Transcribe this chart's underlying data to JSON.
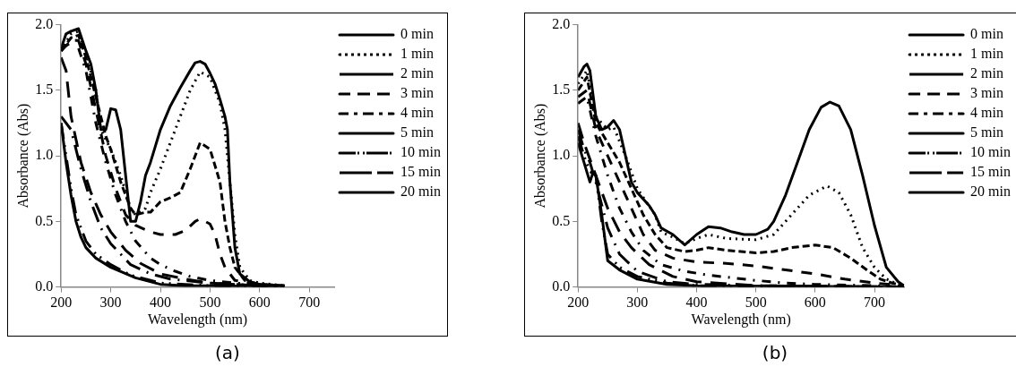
{
  "chart_data": [
    {
      "type": "line",
      "xlabel": "Wavelength (nm)",
      "ylabel": "Absorbance (Abs)",
      "annotations": [
        "(a)"
      ],
      "xlim": [
        200,
        750
      ],
      "xticks": [
        200,
        300,
        400,
        500,
        600,
        700
      ],
      "ylim": [
        0,
        2.0
      ],
      "yticks": [
        {
          "value": 0,
          "label": "0.0"
        },
        {
          "value": 0.5,
          "label": "0.5"
        },
        {
          "value": 1,
          "label": "1.0"
        },
        {
          "value": 1.5,
          "label": "1.5"
        },
        {
          "value": 2,
          "label": "2.0"
        }
      ],
      "grid": false,
      "legend": "top right",
      "marker": "none",
      "series": [
        {
          "name": "0 min",
          "color": "#000000",
          "line_style": "solid",
          "x": [
            200,
            210,
            220,
            235,
            250,
            260,
            270,
            280,
            290,
            300,
            310,
            320,
            330,
            340,
            350,
            360,
            370,
            380,
            400,
            420,
            440,
            460,
            470,
            480,
            490,
            500,
            510,
            520,
            530,
            535,
            540,
            550,
            560,
            580,
            600,
            650
          ],
          "values": [
            1.82,
            1.93,
            1.95,
            1.97,
            1.8,
            1.7,
            1.5,
            1.2,
            1.2,
            1.36,
            1.35,
            1.2,
            0.85,
            0.5,
            0.5,
            0.65,
            0.85,
            0.95,
            1.2,
            1.38,
            1.52,
            1.65,
            1.71,
            1.72,
            1.7,
            1.63,
            1.55,
            1.43,
            1.3,
            1.2,
            0.8,
            0.3,
            0.1,
            0.04,
            0.02,
            0.01
          ]
        },
        {
          "name": "1 min",
          "color": "#000000",
          "line_style": "dotted",
          "x": [
            200,
            220,
            235,
            250,
            270,
            280,
            300,
            320,
            340,
            350,
            370,
            380,
            400,
            420,
            440,
            460,
            480,
            500,
            520,
            530,
            540,
            550,
            560,
            580,
            600,
            650
          ],
          "values": [
            1.8,
            1.93,
            1.95,
            1.78,
            1.5,
            1.2,
            1.05,
            0.85,
            0.6,
            0.55,
            0.6,
            0.72,
            0.9,
            1.1,
            1.3,
            1.5,
            1.64,
            1.6,
            1.4,
            1.2,
            0.8,
            0.4,
            0.15,
            0.05,
            0.03,
            0.01
          ]
        },
        {
          "name": "2 min",
          "color": "#000000",
          "line_style": "dashed",
          "x": [
            200,
            220,
            235,
            250,
            270,
            290,
            300,
            320,
            340,
            350,
            370,
            380,
            400,
            420,
            440,
            460,
            480,
            500,
            520,
            530,
            540,
            550,
            570,
            600,
            650
          ],
          "values": [
            1.8,
            1.9,
            1.92,
            1.75,
            1.45,
            1.15,
            1.05,
            0.8,
            0.6,
            0.55,
            0.57,
            0.57,
            0.65,
            0.68,
            0.72,
            0.9,
            1.1,
            1.05,
            0.8,
            0.5,
            0.3,
            0.15,
            0.05,
            0.02,
            0.01
          ]
        },
        {
          "name": "3 min",
          "color": "#000000",
          "line_style": "longdash",
          "x": [
            200,
            220,
            235,
            250,
            270,
            290,
            310,
            330,
            350,
            380,
            400,
            430,
            450,
            470,
            480,
            500,
            510,
            520,
            530,
            550,
            600,
            650
          ],
          "values": [
            1.8,
            1.88,
            1.88,
            1.7,
            1.35,
            1.0,
            0.75,
            0.55,
            0.47,
            0.42,
            0.4,
            0.4,
            0.43,
            0.5,
            0.52,
            0.48,
            0.4,
            0.25,
            0.15,
            0.05,
            0.02,
            0.01
          ]
        },
        {
          "name": "4 min",
          "color": "#000000",
          "line_style": "dashdot",
          "x": [
            200,
            230,
            250,
            270,
            290,
            310,
            330,
            350,
            380,
            400,
            430,
            460,
            500,
            550,
            600,
            650
          ],
          "values": [
            1.82,
            1.88,
            1.65,
            1.25,
            0.95,
            0.7,
            0.5,
            0.35,
            0.22,
            0.17,
            0.12,
            0.08,
            0.05,
            0.03,
            0.02,
            0.01
          ]
        },
        {
          "name": "5 min",
          "color": "#000000",
          "line_style": "xlongdash",
          "x": [
            200,
            210,
            220,
            240,
            260,
            280,
            300,
            330,
            360,
            400,
            450,
            500,
            600,
            650
          ],
          "values": [
            1.75,
            1.65,
            1.3,
            0.95,
            0.72,
            0.55,
            0.42,
            0.28,
            0.18,
            0.1,
            0.06,
            0.03,
            0.01,
            0.01
          ]
        },
        {
          "name": "10 min",
          "color": "#000000",
          "line_style": "longdashdot",
          "x": [
            200,
            220,
            240,
            260,
            280,
            300,
            340,
            380,
            420,
            500,
            600,
            650
          ],
          "values": [
            1.3,
            1.2,
            0.9,
            0.65,
            0.45,
            0.33,
            0.17,
            0.1,
            0.06,
            0.03,
            0.01,
            0.01
          ]
        },
        {
          "name": "15 min",
          "color": "#000000",
          "line_style": "longdashdotdot",
          "x": [
            200,
            210,
            220,
            230,
            250,
            270,
            300,
            340,
            400,
            500,
            650
          ],
          "values": [
            1.25,
            1.0,
            0.75,
            0.55,
            0.35,
            0.25,
            0.17,
            0.09,
            0.03,
            0.01,
            0
          ]
        },
        {
          "name": "20 min",
          "color": "#000000",
          "line_style": "solid",
          "x": [
            200,
            210,
            220,
            230,
            240,
            250,
            270,
            300,
            350,
            400,
            450,
            500,
            650
          ],
          "values": [
            1.25,
            0.95,
            0.7,
            0.5,
            0.38,
            0.3,
            0.22,
            0.15,
            0.07,
            0.02,
            0.01,
            0.01,
            0
          ]
        }
      ]
    },
    {
      "type": "line",
      "xlabel": "Wavelength (nm)",
      "ylabel": "Absorbance (Abs)",
      "annotations": [
        "(b)"
      ],
      "xlim": [
        200,
        750
      ],
      "xticks": [
        200,
        300,
        400,
        500,
        600,
        700
      ],
      "ylim": [
        0,
        2.0
      ],
      "yticks": [
        {
          "value": 0,
          "label": "0.0"
        },
        {
          "value": 0.5,
          "label": "0.5"
        },
        {
          "value": 1,
          "label": "1.0"
        },
        {
          "value": 1.5,
          "label": "1.5"
        },
        {
          "value": 2,
          "label": "2.0"
        }
      ],
      "grid": false,
      "legend": "top right",
      "marker": "none",
      "series": [
        {
          "name": "0 min",
          "color": "#000000",
          "line_style": "solid",
          "x": [
            200,
            210,
            215,
            220,
            230,
            240,
            250,
            260,
            270,
            280,
            290,
            300,
            320,
            330,
            340,
            360,
            380,
            400,
            420,
            440,
            460,
            480,
            500,
            520,
            530,
            550,
            570,
            590,
            610,
            625,
            640,
            660,
            680,
            700,
            720,
            740,
            750
          ],
          "values": [
            1.6,
            1.68,
            1.7,
            1.65,
            1.3,
            1.2,
            1.22,
            1.27,
            1.2,
            1.0,
            0.8,
            0.72,
            0.62,
            0.55,
            0.45,
            0.4,
            0.32,
            0.4,
            0.46,
            0.45,
            0.42,
            0.4,
            0.4,
            0.44,
            0.5,
            0.7,
            0.95,
            1.2,
            1.37,
            1.41,
            1.38,
            1.2,
            0.85,
            0.47,
            0.15,
            0.04,
            0.01
          ]
        },
        {
          "name": "1 min",
          "color": "#000000",
          "line_style": "dotted",
          "x": [
            200,
            215,
            230,
            250,
            260,
            280,
            300,
            330,
            340,
            360,
            380,
            400,
            420,
            450,
            500,
            530,
            560,
            590,
            620,
            640,
            660,
            680,
            700,
            720,
            740,
            750
          ],
          "values": [
            1.55,
            1.65,
            1.3,
            1.2,
            1.22,
            1.0,
            0.75,
            0.55,
            0.42,
            0.38,
            0.33,
            0.37,
            0.4,
            0.37,
            0.36,
            0.4,
            0.55,
            0.7,
            0.77,
            0.72,
            0.55,
            0.3,
            0.15,
            0.06,
            0.02,
            0.01
          ]
        },
        {
          "name": "2 min",
          "color": "#000000",
          "line_style": "dashed",
          "x": [
            200,
            215,
            230,
            250,
            270,
            290,
            310,
            330,
            350,
            380,
            400,
            420,
            450,
            500,
            530,
            560,
            600,
            630,
            660,
            690,
            710,
            730,
            750
          ],
          "values": [
            1.5,
            1.6,
            1.25,
            1.1,
            0.95,
            0.75,
            0.55,
            0.4,
            0.3,
            0.27,
            0.28,
            0.3,
            0.28,
            0.26,
            0.27,
            0.3,
            0.32,
            0.3,
            0.22,
            0.12,
            0.06,
            0.03,
            0.01
          ]
        },
        {
          "name": "3 min",
          "color": "#000000",
          "line_style": "longdash",
          "x": [
            200,
            215,
            230,
            250,
            270,
            290,
            310,
            330,
            360,
            400,
            450,
            500,
            550,
            600,
            650,
            700,
            750
          ],
          "values": [
            1.45,
            1.5,
            1.2,
            1.0,
            0.8,
            0.6,
            0.4,
            0.28,
            0.22,
            0.19,
            0.18,
            0.16,
            0.13,
            0.1,
            0.06,
            0.03,
            0.01
          ]
        },
        {
          "name": "4 min",
          "color": "#000000",
          "line_style": "dashdot",
          "x": [
            200,
            215,
            230,
            250,
            270,
            290,
            310,
            340,
            380,
            420,
            460,
            500,
            550,
            600,
            700,
            750
          ],
          "values": [
            1.4,
            1.45,
            1.15,
            0.85,
            0.6,
            0.42,
            0.28,
            0.17,
            0.12,
            0.09,
            0.07,
            0.05,
            0.03,
            0.02,
            0.01,
            0
          ]
        },
        {
          "name": "5 min",
          "color": "#000000",
          "line_style": "xlongdash",
          "x": [
            200,
            210,
            230,
            250,
            270,
            290,
            320,
            360,
            400,
            500,
            750
          ],
          "values": [
            1.25,
            1.1,
            0.85,
            0.6,
            0.42,
            0.3,
            0.17,
            0.08,
            0.04,
            0.01,
            0
          ]
        },
        {
          "name": "10 min",
          "color": "#000000",
          "line_style": "longdashdot",
          "x": [
            200,
            210,
            220,
            230,
            250,
            270,
            300,
            350,
            400,
            500,
            750
          ],
          "values": [
            1.2,
            1.05,
            0.95,
            0.8,
            0.45,
            0.25,
            0.12,
            0.04,
            0.02,
            0.01,
            0
          ]
        },
        {
          "name": "15 min",
          "color": "#000000",
          "line_style": "longdashdotdot",
          "x": [
            200,
            210,
            220,
            230,
            240,
            250,
            270,
            300,
            350,
            400,
            750
          ],
          "values": [
            1.15,
            1.0,
            0.88,
            0.85,
            0.5,
            0.25,
            0.15,
            0.08,
            0.03,
            0.01,
            0
          ]
        },
        {
          "name": "20 min",
          "color": "#000000",
          "line_style": "solid",
          "x": [
            200,
            210,
            220,
            225,
            230,
            240,
            250,
            270,
            300,
            350,
            400,
            750
          ],
          "values": [
            1.1,
            0.95,
            0.8,
            0.87,
            0.85,
            0.55,
            0.2,
            0.13,
            0.06,
            0.02,
            0.01,
            0
          ]
        }
      ]
    }
  ]
}
